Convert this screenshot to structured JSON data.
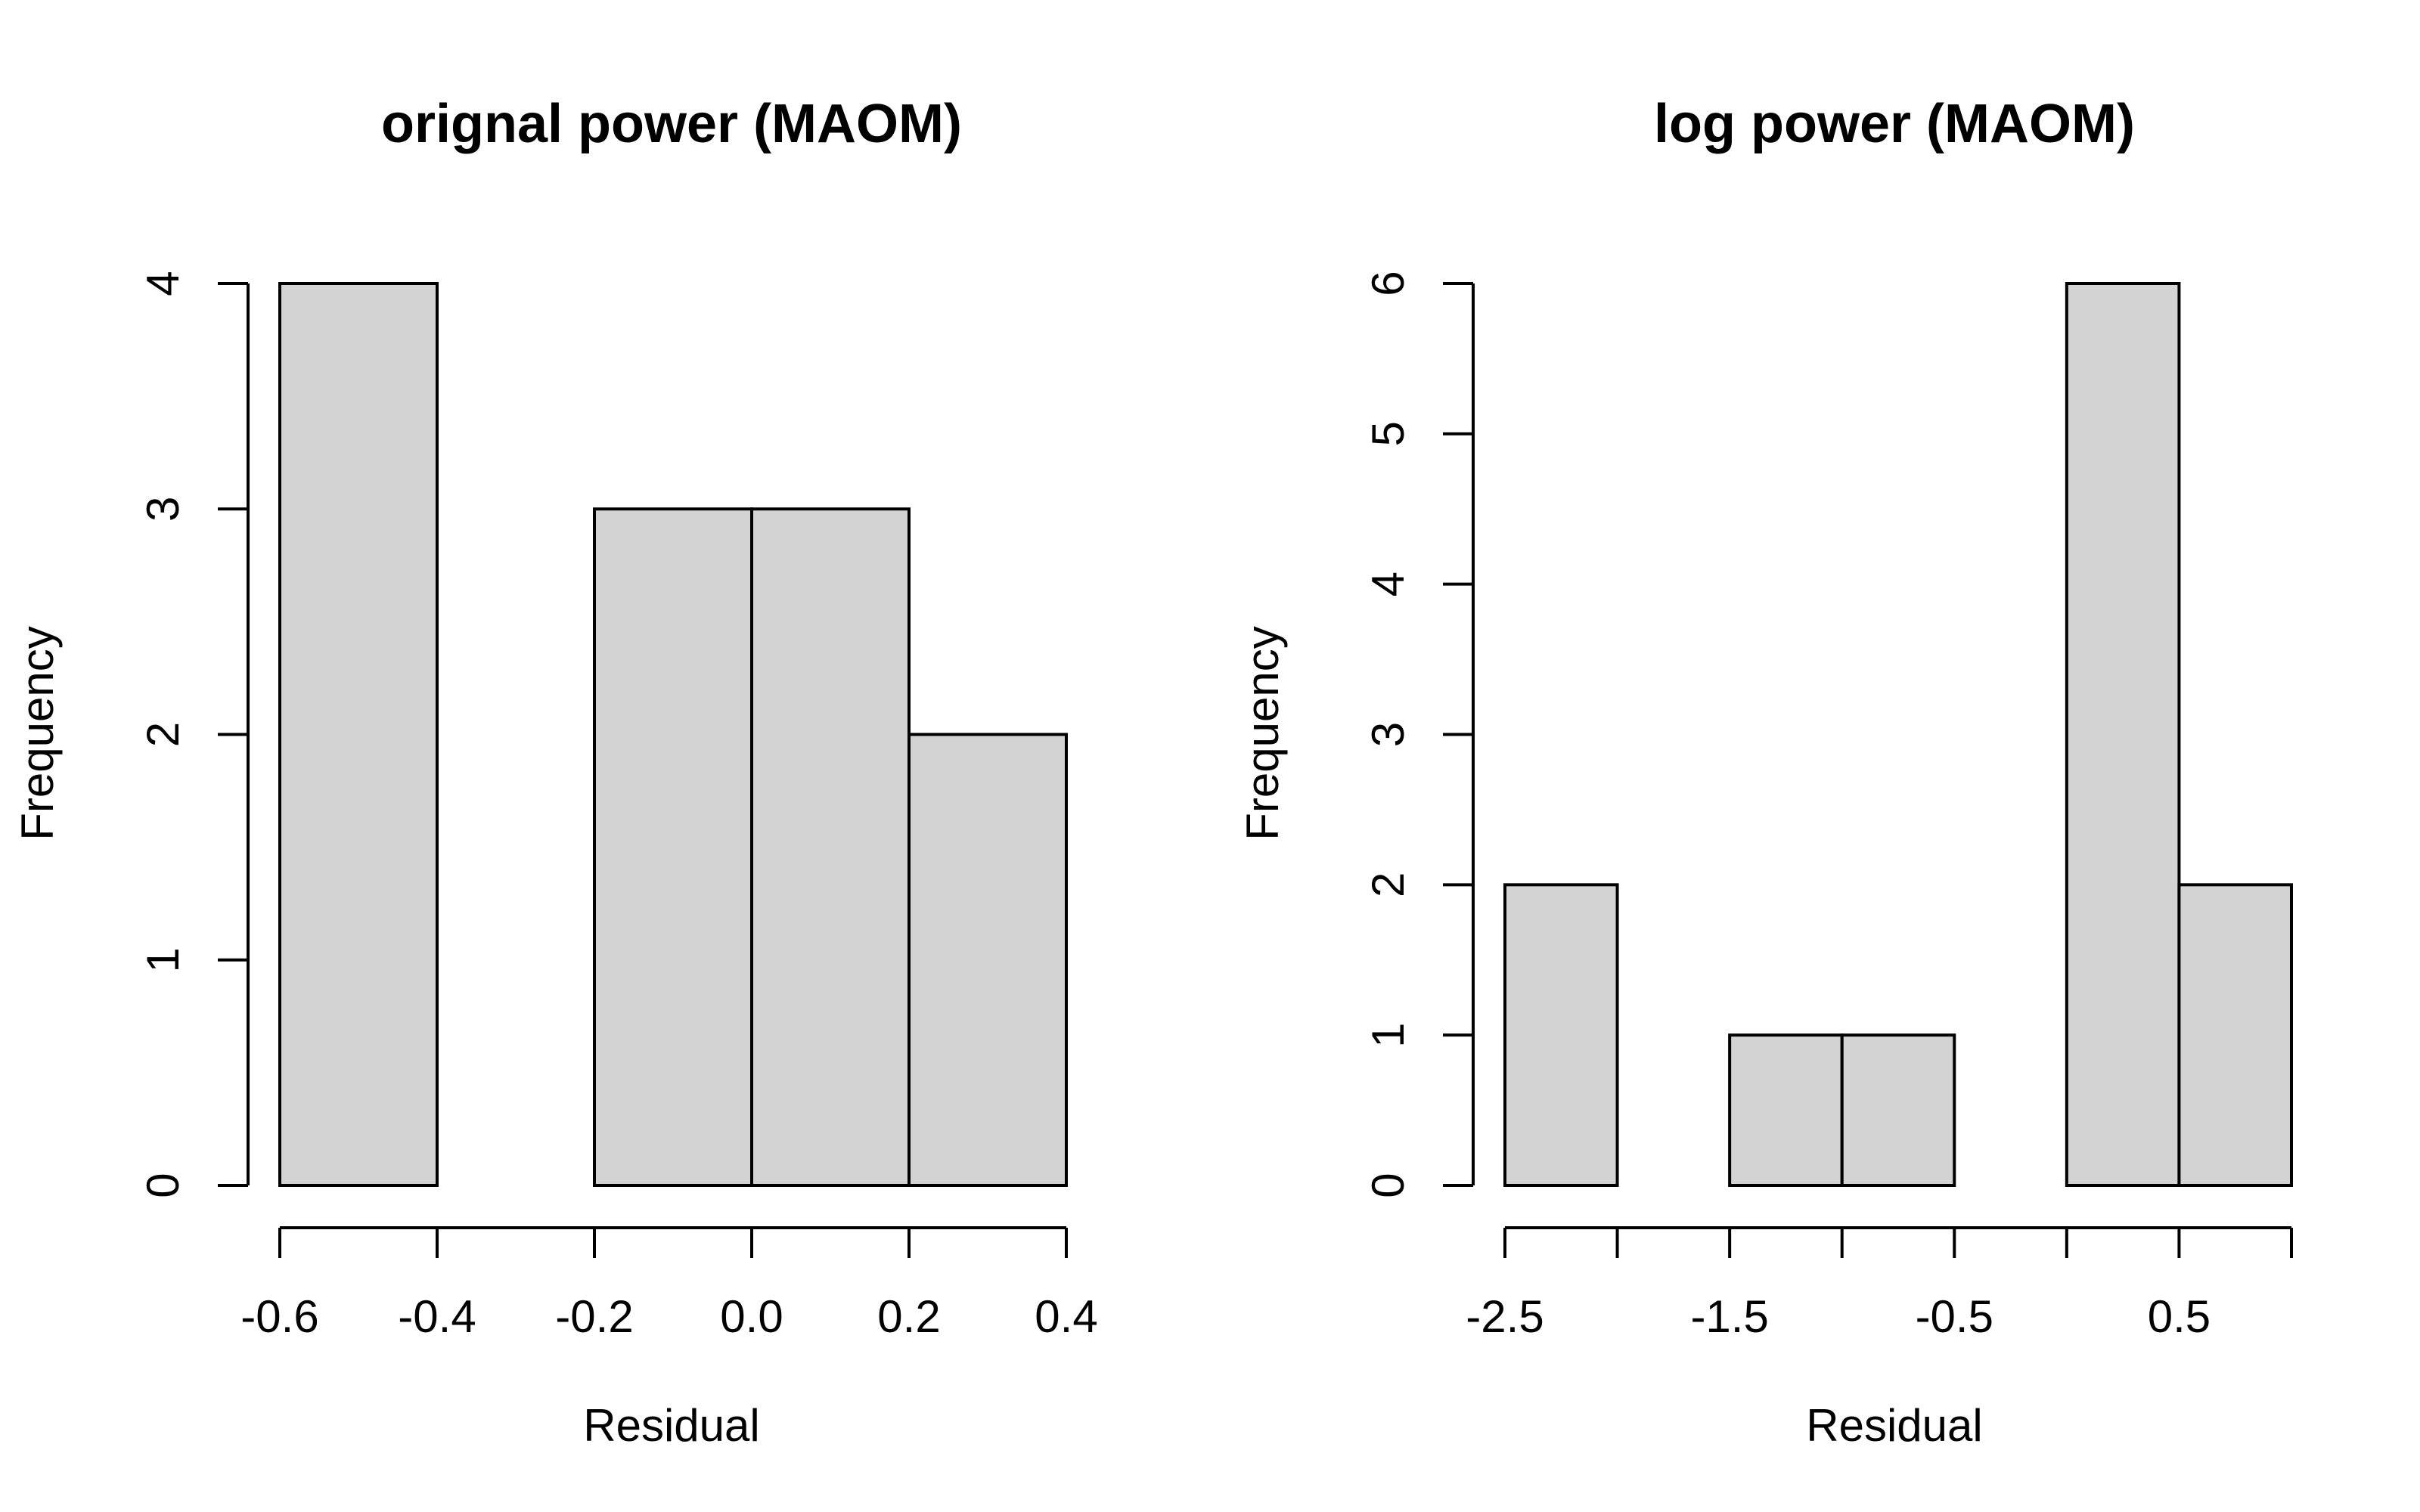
{
  "chart_data": [
    {
      "type": "bar",
      "subtype": "histogram",
      "title": "orignal power (MAOM)",
      "xlabel": "Residual",
      "ylabel": "Frequency",
      "bins": [
        {
          "from": -0.6,
          "to": -0.4,
          "count": 4
        },
        {
          "from": -0.4,
          "to": -0.2,
          "count": 0
        },
        {
          "from": -0.2,
          "to": 0.0,
          "count": 3
        },
        {
          "from": 0.0,
          "to": 0.2,
          "count": 3
        },
        {
          "from": 0.2,
          "to": 0.4,
          "count": 2
        }
      ],
      "xlim": [
        -0.6,
        0.4
      ],
      "ylim": [
        0,
        4
      ],
      "x_ticks": [
        -0.6,
        -0.4,
        -0.2,
        0.0,
        0.2,
        0.4
      ],
      "x_tick_labels": [
        "-0.6",
        "-0.4",
        "-0.2",
        "0.0",
        "0.2",
        "0.4"
      ],
      "y_ticks": [
        0,
        1,
        2,
        3,
        4
      ],
      "y_tick_labels": [
        "0",
        "1",
        "2",
        "3",
        "4"
      ],
      "bar_color": "#d3d3d3",
      "grid": false
    },
    {
      "type": "bar",
      "subtype": "histogram",
      "title": "log power (MAOM)",
      "xlabel": "Residual",
      "ylabel": "Frequency",
      "bins": [
        {
          "from": -2.5,
          "to": -2.0,
          "count": 2
        },
        {
          "from": -2.0,
          "to": -1.5,
          "count": 0
        },
        {
          "from": -1.5,
          "to": -1.0,
          "count": 1
        },
        {
          "from": -1.0,
          "to": -0.5,
          "count": 1
        },
        {
          "from": -0.5,
          "to": 0.0,
          "count": 0
        },
        {
          "from": 0.0,
          "to": 0.5,
          "count": 6
        },
        {
          "from": 0.5,
          "to": 1.0,
          "count": 2
        }
      ],
      "xlim": [
        -2.5,
        1.0
      ],
      "ylim": [
        0,
        6
      ],
      "x_ticks": [
        -2.5,
        -2.0,
        -1.5,
        -1.0,
        -0.5,
        0.0,
        0.5,
        1.0
      ],
      "x_tick_labels": [
        "-2.5",
        "",
        "-1.5",
        "",
        "-0.5",
        "",
        "0.5",
        ""
      ],
      "y_ticks": [
        0,
        1,
        2,
        3,
        4,
        5,
        6
      ],
      "y_tick_labels": [
        "0",
        "1",
        "2",
        "3",
        "4",
        "5",
        "6"
      ],
      "bar_color": "#d3d3d3",
      "grid": false
    }
  ]
}
